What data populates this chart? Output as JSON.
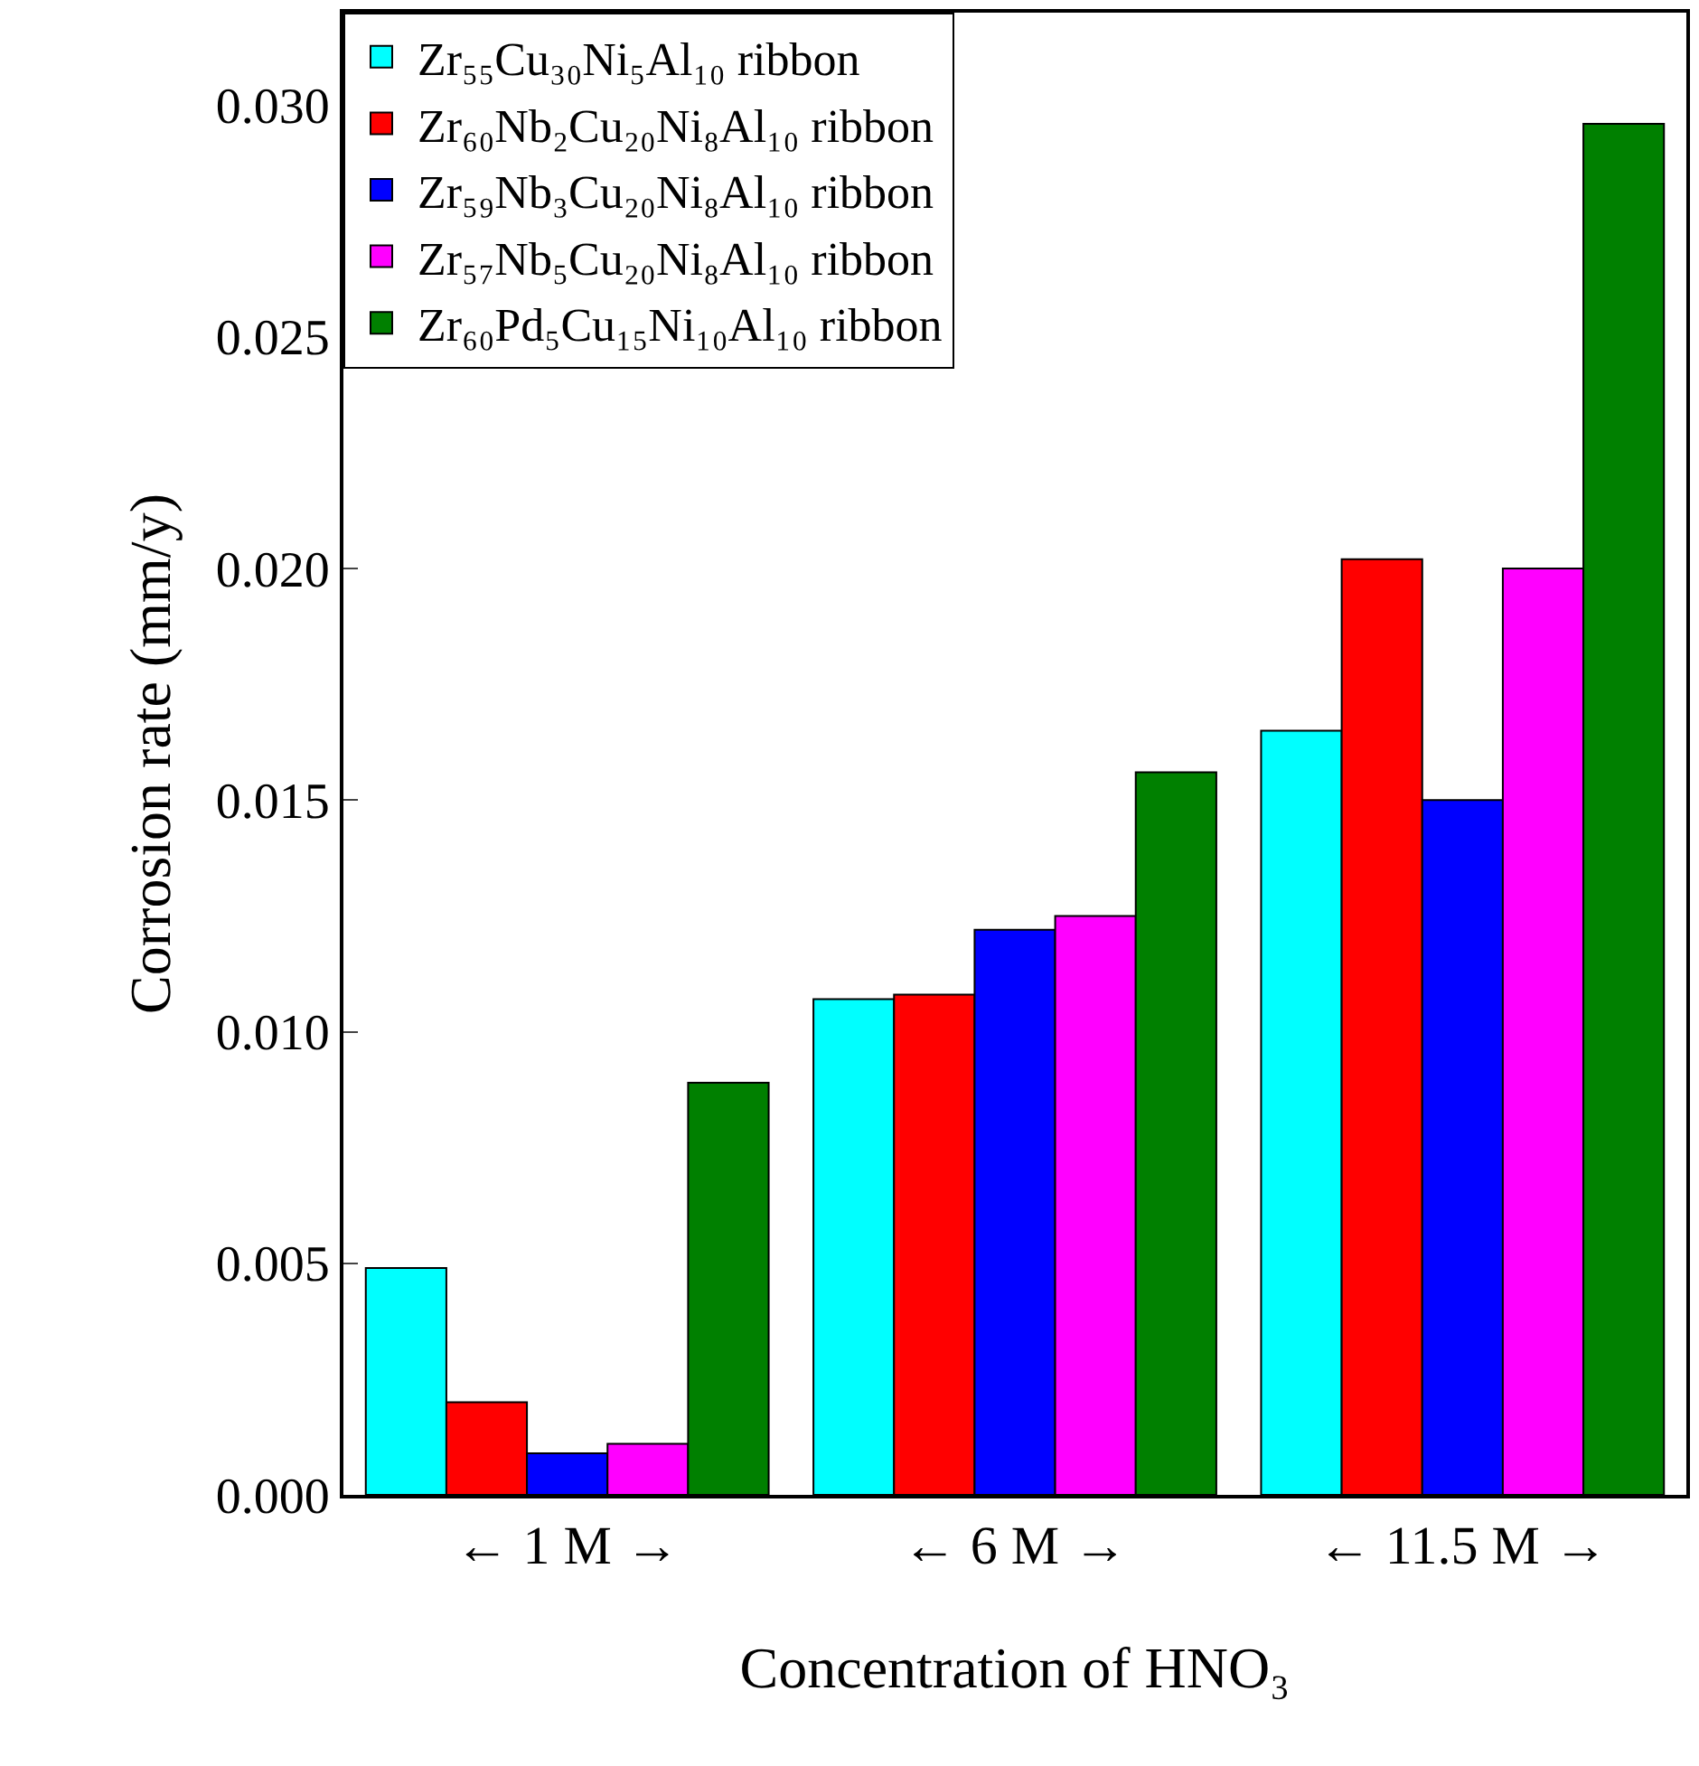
{
  "chart_data": {
    "type": "bar",
    "xlabel": "Concentration of HNO₃",
    "ylabel": "Corrosion rate (mm/y)",
    "categories": [
      "← 1 M →",
      "← 6 M →",
      "← 11.5 M →"
    ],
    "series": [
      {
        "name": "Zr₅₅Cu₃₀Ni₅Al₁₀ ribbon",
        "color": "#00ffff",
        "values": [
          0.0049,
          0.0107,
          0.0165
        ]
      },
      {
        "name": "Zr₆₀Nb₂Cu₂₀Ni₈Al₁₀ ribbon",
        "color": "#ff0000",
        "values": [
          0.002,
          0.0108,
          0.0202
        ]
      },
      {
        "name": "Zr₅₉Nb₃Cu₂₀Ni₈Al₁₀ ribbon",
        "color": "#0000ff",
        "values": [
          0.0009,
          0.0122,
          0.015
        ]
      },
      {
        "name": "Zr₅₇Nb₅Cu₂₀Ni₈Al₁₀ ribbon",
        "color": "#ff00ff",
        "values": [
          0.0011,
          0.0125,
          0.02
        ]
      },
      {
        "name": "Zr₆₀Pd₅Cu₁₅Ni₁₀Al₁₀ ribbon",
        "color": "#008000",
        "values": [
          0.0089,
          0.0156,
          0.0296
        ]
      }
    ],
    "ylim": [
      0,
      0.032
    ],
    "yticks": [
      {
        "value": 0,
        "label": "0.000"
      },
      0.005,
      {
        "value": 0.01,
        "label": "0.010"
      },
      0.015,
      {
        "value": 0.02,
        "label": "0.020"
      },
      0.025,
      {
        "value": 0.03,
        "label": "0.030"
      }
    ],
    "legend": "top left"
  }
}
